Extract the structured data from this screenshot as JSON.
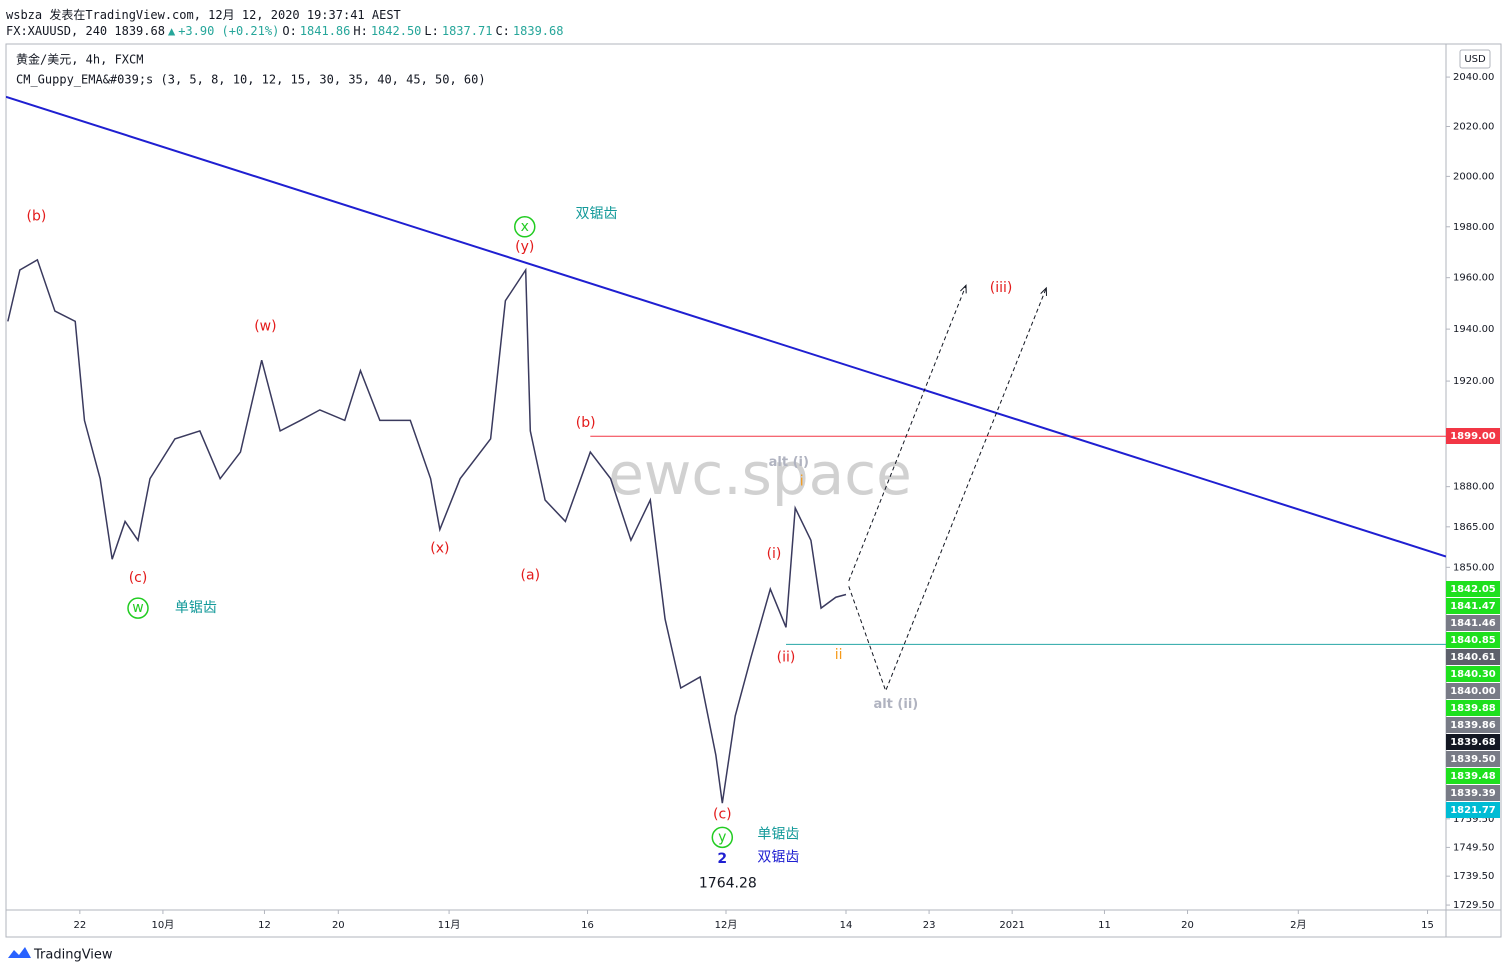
{
  "header": {
    "line1": "wsbza 发表在TradingView.com, 12月 12, 2020 19:37:41 AEST",
    "line2": [
      {
        "text": "FX:XAUUSD, 240 1839.68",
        "color": "#131722"
      },
      {
        "text": "▲",
        "color": "#26a69a"
      },
      {
        "text": "+3.90 (+0.21%)",
        "color": "#26a69a"
      },
      {
        "text": "O:",
        "color": "#131722"
      },
      {
        "text": "1841.86",
        "color": "#26a69a"
      },
      {
        "text": "H:",
        "color": "#131722"
      },
      {
        "text": "1842.50",
        "color": "#26a69a"
      },
      {
        "text": "L:",
        "color": "#131722"
      },
      {
        "text": "1837.71",
        "color": "#26a69a"
      },
      {
        "text": "C:",
        "color": "#131722"
      },
      {
        "text": "1839.68",
        "color": "#26a69a"
      }
    ]
  },
  "legend": {
    "symbol": "黄金/美元, 4h, FXCM",
    "indicator": "CM_Guppy_EMA&#039;s (3, 5, 8, 10, 12, 15, 30, 35, 40, 45, 50, 60)"
  },
  "currency": "USD",
  "footer": "TradingView",
  "watermark": "ewc.space",
  "chart_data": {
    "type": "line",
    "log_scale": true,
    "color": "#3a3a5e",
    "x": [
      13.2,
      14.5,
      16.4,
      18.3,
      20.5,
      21.5,
      23.2,
      24.5,
      25.9,
      27.3,
      28.6,
      31.3,
      34.0,
      36.2,
      38.4,
      40.7,
      42.7,
      44.9,
      47.0,
      49.7,
      51.4,
      53.5,
      56.8,
      59.0,
      60.0,
      62.2,
      65.5,
      67.1,
      69.3,
      69.8,
      71.4,
      73.6,
      76.3,
      78.5,
      80.7,
      82.8,
      84.4,
      86.1,
      88.2,
      89.9,
      90.6,
      92.0,
      93.7,
      95.8,
      97.5,
      98.5,
      100.2,
      101.3,
      102.9,
      104.0
    ],
    "y": [
      1943,
      1963,
      1967,
      1947,
      1943,
      1905,
      1883,
      1853,
      1867,
      1860,
      1883,
      1898,
      1901,
      1883,
      1893,
      1928,
      1901,
      1905,
      1909,
      1905,
      1924,
      1905,
      1905,
      1883,
      1864,
      1883,
      1898,
      1951,
      1963,
      1901,
      1875,
      1867,
      1893,
      1883,
      1860,
      1875,
      1831,
      1806,
      1810,
      1782,
      1765,
      1796,
      1817,
      1842,
      1828,
      1872,
      1860,
      1835,
      1839,
      1840
    ],
    "xlim": [
      13,
      169
    ],
    "ylim": [
      1727.8,
      2053.5
    ],
    "xticks": [
      {
        "value": 21,
        "label": "22"
      },
      {
        "value": 30,
        "label": "10月"
      },
      {
        "value": 41,
        "label": "12"
      },
      {
        "value": 49,
        "label": "20"
      },
      {
        "value": 61,
        "label": "11月"
      },
      {
        "value": 76,
        "label": "16"
      },
      {
        "value": 91,
        "label": "12月"
      },
      {
        "value": 104,
        "label": "14"
      },
      {
        "value": 113,
        "label": "23"
      },
      {
        "value": 122,
        "label": "2021"
      },
      {
        "value": 132,
        "label": "11"
      },
      {
        "value": 141,
        "label": "20"
      },
      {
        "value": 153,
        "label": "2月"
      },
      {
        "value": 167,
        "label": "15"
      }
    ],
    "yticks": [
      {
        "value": 2040,
        "label": "2040.00"
      },
      {
        "value": 2020,
        "label": "2020.00"
      },
      {
        "value": 2000,
        "label": "2000.00"
      },
      {
        "value": 1980,
        "label": "1980.00"
      },
      {
        "value": 1960,
        "label": "1960.00"
      },
      {
        "value": 1940,
        "label": "1940.00"
      },
      {
        "value": 1920,
        "label": "1920.00"
      },
      {
        "value": 1880,
        "label": "1880.00"
      },
      {
        "value": 1865,
        "label": "1865.00"
      },
      {
        "value": 1850,
        "label": "1850.00"
      },
      {
        "value": 1759.5,
        "label": "1759.50"
      },
      {
        "value": 1749.5,
        "label": "1749.50"
      },
      {
        "value": 1739.5,
        "label": "1739.50"
      },
      {
        "value": 1729.5,
        "label": "1729.50"
      }
    ],
    "trendline": {
      "color": "#1f1fd1",
      "x": [
        13,
        169
      ],
      "y": [
        2032,
        1854
      ]
    },
    "hlines": [
      {
        "value": 1899,
        "from": 76.3,
        "color": "#f23645"
      },
      {
        "value": 1821.77,
        "from": 97.5,
        "color": "#26a6a6"
      }
    ],
    "projections": [
      {
        "x": [
          104.3,
          117.0
        ],
        "y": [
          1845,
          1957
        ]
      },
      {
        "x": [
          104.3,
          108.3,
          125.7
        ],
        "y": [
          1843,
          1805,
          1956
        ]
      }
    ],
    "price_tags": [
      {
        "label": "1899.00",
        "color": "#f23645"
      },
      {
        "label": "1842.05",
        "color": "#1ee01e"
      },
      {
        "label": "1841.47",
        "color": "#1ee01e"
      },
      {
        "label": "1841.46",
        "color": "#787b86"
      },
      {
        "label": "1840.85",
        "color": "#1ee01e"
      },
      {
        "label": "1840.61",
        "color": "#5d606b"
      },
      {
        "label": "1840.30",
        "color": "#1ee01e"
      },
      {
        "label": "1840.00",
        "color": "#787b86"
      },
      {
        "label": "1839.88",
        "color": "#1ee01e"
      },
      {
        "label": "1839.86",
        "color": "#787b86"
      },
      {
        "label": "1839.68",
        "color": "#131722"
      },
      {
        "label": "1839.50",
        "color": "#787b86"
      },
      {
        "label": "1839.48",
        "color": "#1ee01e"
      },
      {
        "label": "1839.39",
        "color": "#787b86"
      },
      {
        "label": "1821.77",
        "color": "#00bcd4"
      }
    ],
    "annotations": [
      {
        "text": "(b)",
        "x": 16.3,
        "y": 1984,
        "color": "#e31b1b"
      },
      {
        "text": "(c)",
        "x": 27.3,
        "y": 1846,
        "color": "#e31b1b"
      },
      {
        "text": "w",
        "x": 27.3,
        "y": 1835,
        "color": "#22cc22",
        "circled": true
      },
      {
        "text": "单锯齿",
        "x": 31.3,
        "y": 1835,
        "color": "#149a9a"
      },
      {
        "text": "(w)",
        "x": 41.1,
        "y": 1941,
        "color": "#e31b1b"
      },
      {
        "text": "(x)",
        "x": 60.0,
        "y": 1857,
        "color": "#e31b1b"
      },
      {
        "text": "x",
        "x": 69.2,
        "y": 1980,
        "color": "#22cc22",
        "circled": true
      },
      {
        "text": "双锯齿",
        "x": 74.7,
        "y": 1985,
        "color": "#149a9a"
      },
      {
        "text": "(y)",
        "x": 69.2,
        "y": 1972,
        "color": "#e31b1b"
      },
      {
        "text": "(a)",
        "x": 69.8,
        "y": 1847,
        "color": "#e31b1b"
      },
      {
        "text": "(b)",
        "x": 75.8,
        "y": 1904,
        "color": "#e31b1b"
      },
      {
        "text": "alt (i)",
        "x": 97.8,
        "y": 1889,
        "color": "#b0b3c0"
      },
      {
        "text": "i",
        "x": 99.2,
        "y": 1882,
        "color": "#f59a1a"
      },
      {
        "text": "(i)",
        "x": 96.2,
        "y": 1855,
        "color": "#e31b1b"
      },
      {
        "text": "(ii)",
        "x": 97.5,
        "y": 1817,
        "color": "#e31b1b"
      },
      {
        "text": "ii",
        "x": 103.2,
        "y": 1818,
        "color": "#f59a1a"
      },
      {
        "text": "alt (ii)",
        "x": 109.4,
        "y": 1800,
        "color": "#b0b3c0"
      },
      {
        "text": "(iii)",
        "x": 120.8,
        "y": 1956,
        "color": "#e31b1b"
      },
      {
        "text": "(c)",
        "x": 90.6,
        "y": 1761,
        "color": "#e31b1b"
      },
      {
        "text": "y",
        "x": 90.6,
        "y": 1753,
        "color": "#22cc22",
        "circled": true
      },
      {
        "text": "单锯齿",
        "x": 94.4,
        "y": 1754,
        "color": "#149a9a"
      },
      {
        "text": "2",
        "x": 90.6,
        "y": 1745.5,
        "color": "#1f1fd1"
      },
      {
        "text": "双锯齿",
        "x": 94.4,
        "y": 1746,
        "color": "#1f1fd1"
      },
      {
        "text": "1764.28",
        "x": 91.2,
        "y": 1737,
        "color": "#131722"
      }
    ]
  }
}
